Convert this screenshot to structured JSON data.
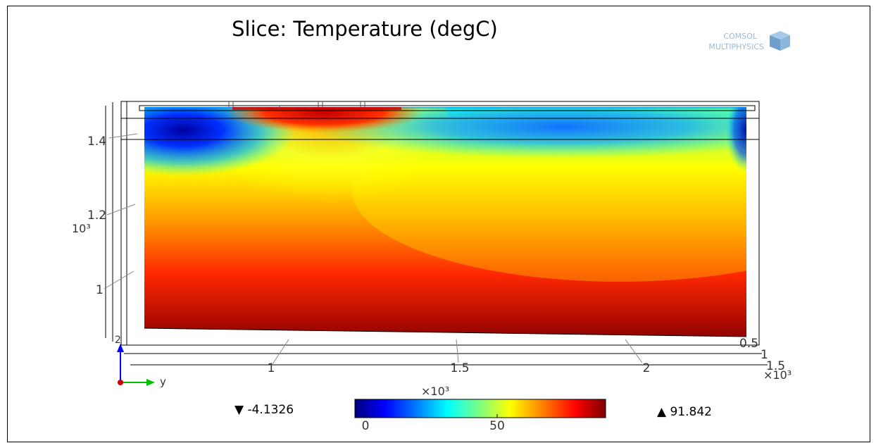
{
  "title": "Slice: Temperature (degC)",
  "logo": {
    "line1": "COMSOL",
    "line2": "MULTIPHYSICS",
    "icon": "comsol-cube-icon"
  },
  "axes": {
    "z_ticks": [
      "1",
      "1.2",
      "1.4"
    ],
    "z_exponent": "10³",
    "x_ticks": [
      "1",
      "1.5",
      "2"
    ],
    "x_exponent": "×10³",
    "y_ticks": [
      "0.5",
      "1",
      "1.5"
    ],
    "y_exponent": "×10³",
    "corner_tick": "2",
    "triad_label": "y"
  },
  "legend": {
    "min_label": "▼ -4.1326",
    "max_label": "▲ 91.842",
    "exponent": "×10³",
    "tick_0": "0",
    "tick_50": "50",
    "colors": [
      "#00007f",
      "#0000ff",
      "#007fff",
      "#00ffff",
      "#7fff7f",
      "#ffff00",
      "#ff7f00",
      "#ff0000",
      "#7f0000"
    ]
  }
}
